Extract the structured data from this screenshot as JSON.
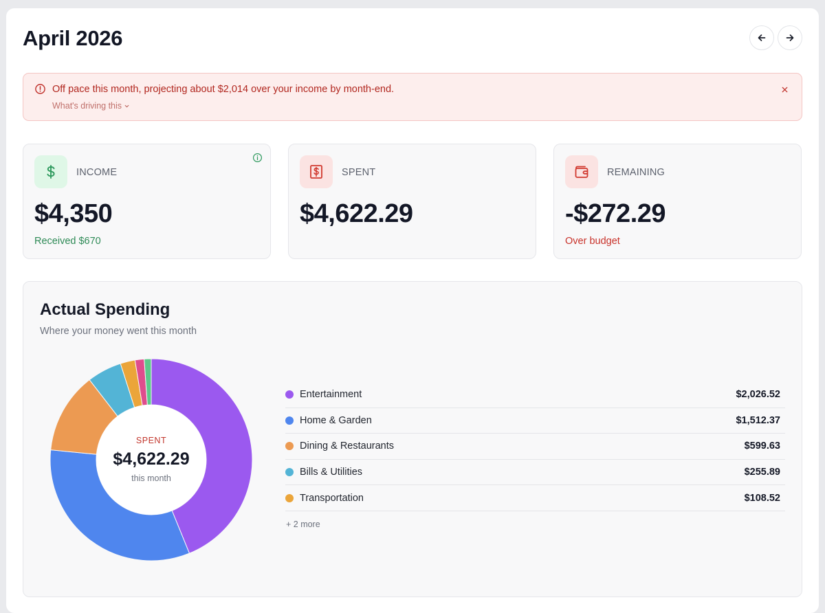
{
  "header": {
    "month_title": "April 2026"
  },
  "alert": {
    "message": "Off pace this month, projecting about $2,014 over your income by month-end.",
    "link_label": "What's driving this"
  },
  "cards": {
    "income": {
      "label": "INCOME",
      "value": "$4,350",
      "sub": "Received $670",
      "sub_color": "#2e8a56",
      "icon": "dollar-icon",
      "icon_bg": "#dff7e7",
      "icon_color": "#2f9a5e"
    },
    "spent": {
      "label": "SPENT",
      "value": "$4,622.29",
      "icon": "receipt-icon",
      "icon_bg": "#fbe3e2",
      "icon_color": "#d1392f"
    },
    "remaining": {
      "label": "REMAINING",
      "value": "-$272.29",
      "sub": "Over budget",
      "sub_color": "#c8322a",
      "icon": "wallet-icon",
      "icon_bg": "#fbe3e2",
      "icon_color": "#d1392f"
    }
  },
  "spending": {
    "title": "Actual Spending",
    "subtitle": "Where your money went this month",
    "center_label": "SPENT",
    "center_value": "$4,622.29",
    "center_sub": "this month",
    "more_label": "+ 2 more",
    "categories": [
      {
        "name": "Entertainment",
        "amount": "$2,026.52",
        "value": 2026.52,
        "color": "#9b59ef"
      },
      {
        "name": "Home & Garden",
        "amount": "$1,512.37",
        "value": 1512.37,
        "color": "#4f86ee"
      },
      {
        "name": "Dining & Restaurants",
        "amount": "$599.63",
        "value": 599.63,
        "color": "#ec9a52"
      },
      {
        "name": "Bills & Utilities",
        "amount": "$255.89",
        "value": 255.89,
        "color": "#53b4d6"
      },
      {
        "name": "Transportation",
        "amount": "$108.52",
        "value": 108.52,
        "color": "#eba53a"
      }
    ],
    "extra_slices": [
      {
        "value": 67.7,
        "color": "#df4d8d"
      },
      {
        "value": 51.66,
        "color": "#5cc98a"
      }
    ]
  }
}
